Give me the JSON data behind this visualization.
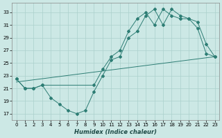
{
  "xlabel": "Humidex (Indice chaleur)",
  "background_color": "#cce8e5",
  "grid_color": "#aad0cc",
  "line_color": "#2d7d74",
  "xlim": [
    -0.5,
    23.5
  ],
  "ylim": [
    16.0,
    34.5
  ],
  "yticks": [
    17,
    19,
    21,
    23,
    25,
    27,
    29,
    31,
    33
  ],
  "xticks": [
    0,
    1,
    2,
    3,
    4,
    5,
    6,
    7,
    8,
    9,
    10,
    11,
    12,
    13,
    14,
    15,
    16,
    17,
    18,
    19,
    20,
    21,
    22,
    23
  ],
  "series1_x": [
    0,
    1,
    2,
    3,
    4,
    5,
    6,
    7,
    8,
    9,
    10,
    11,
    12,
    13,
    14,
    15,
    16,
    17,
    18,
    19,
    20,
    21,
    22,
    23
  ],
  "series1_y": [
    22.5,
    21.0,
    21.0,
    21.5,
    19.5,
    18.5,
    17.5,
    17.0,
    17.5,
    20.5,
    23.0,
    25.5,
    26.0,
    29.0,
    30.0,
    32.5,
    33.5,
    31.0,
    33.5,
    32.5,
    32.0,
    30.5,
    26.5,
    26.0
  ],
  "series2_x": [
    0,
    1,
    2,
    3,
    9,
    10,
    11,
    12,
    13,
    14,
    15,
    16,
    17,
    18,
    19,
    20,
    21,
    22,
    23
  ],
  "series2_y": [
    22.5,
    21.0,
    21.0,
    21.5,
    21.5,
    24.0,
    26.0,
    27.0,
    30.0,
    32.0,
    33.0,
    31.0,
    33.5,
    32.5,
    32.0,
    32.0,
    31.5,
    28.0,
    26.0
  ],
  "series3_x": [
    0,
    23
  ],
  "series3_y": [
    22.0,
    26.0
  ]
}
